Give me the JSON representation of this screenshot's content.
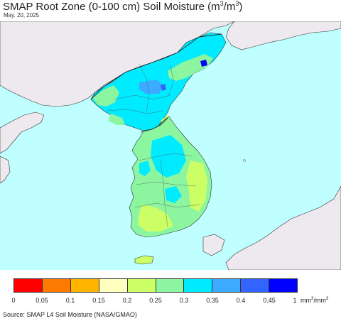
{
  "header": {
    "title_main": "SMAP Root Zone (0-100 cm) Soil Moisture (m",
    "title_mid": ")",
    "title_close": ")",
    "sup": "3",
    "sep": "/m",
    "date": "May. 20, 2025"
  },
  "legend": {
    "colors": [
      "#ff0000",
      "#ff7a00",
      "#ffb400",
      "#ffffc0",
      "#ccff66",
      "#8cf5a0",
      "#00ebff",
      "#3caaff",
      "#3264ff",
      "#0000ff"
    ],
    "ticks": [
      "0",
      "0.05",
      "0.1",
      "0.15",
      "0.2",
      "0.25",
      "0.3",
      "0.35",
      "0.4",
      "0.45",
      "1"
    ],
    "unit_prefix": "mm",
    "unit_mid": "/mm",
    "unit_sup": "3"
  },
  "map": {
    "sea_color": "#bfffff",
    "land_other_color": "#ede9ee",
    "border_color": "#333333"
  },
  "footer": {
    "source": "Source: SMAP L4 Soil Moisture (NASA/GMAO)"
  }
}
